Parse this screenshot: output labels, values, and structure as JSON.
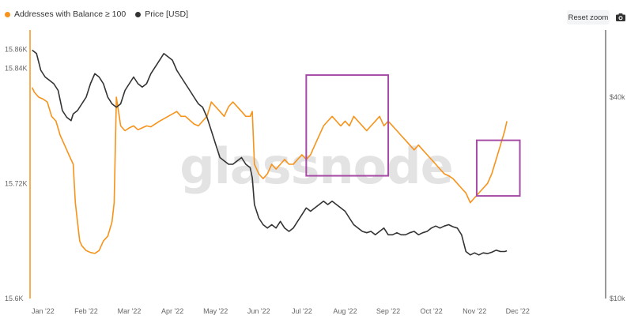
{
  "legend": {
    "addresses_label": "Addresses with Balance ≥ 100",
    "price_label": "Price [USD]"
  },
  "toolbar": {
    "reset_zoom_label": "Reset zoom",
    "camera_icon": "camera-icon"
  },
  "watermark": "glassnode",
  "colors": {
    "addresses": "#f7931a",
    "price": "#333333",
    "highlight": "#a64ca6",
    "axis_line": "#f7931a"
  },
  "chart_data": {
    "type": "line",
    "x_ticks": [
      "Jan '22",
      "Feb '22",
      "Mar '22",
      "Apr '22",
      "May '22",
      "Jun '22",
      "Jul '22",
      "Aug '22",
      "Sep '22",
      "Oct '22",
      "Nov '22",
      "Dec '22"
    ],
    "y_left_ticks": [
      "15.6K",
      "15.72K",
      "15.84K",
      "15.86K"
    ],
    "y_right_ticks": [
      "$10k",
      "$40k"
    ],
    "ylim_left": [
      15.6,
      15.88
    ],
    "ylim_right": [
      10000,
      50000
    ],
    "grid": false,
    "legend_position": "top-left",
    "x_range": [
      0,
      12
    ],
    "series": [
      {
        "name": "Addresses with Balance ≥ 100",
        "axis": "left",
        "color": "#f7931a",
        "points": [
          [
            0.05,
            15.82
          ],
          [
            0.1,
            15.815
          ],
          [
            0.2,
            15.81
          ],
          [
            0.3,
            15.808
          ],
          [
            0.4,
            15.805
          ],
          [
            0.5,
            15.79
          ],
          [
            0.6,
            15.785
          ],
          [
            0.7,
            15.77
          ],
          [
            0.8,
            15.76
          ],
          [
            0.9,
            15.75
          ],
          [
            1.0,
            15.74
          ],
          [
            1.05,
            15.7
          ],
          [
            1.1,
            15.68
          ],
          [
            1.15,
            15.66
          ],
          [
            1.2,
            15.655
          ],
          [
            1.3,
            15.65
          ],
          [
            1.4,
            15.648
          ],
          [
            1.5,
            15.647
          ],
          [
            1.6,
            15.65
          ],
          [
            1.7,
            15.66
          ],
          [
            1.8,
            15.665
          ],
          [
            1.9,
            15.68
          ],
          [
            1.95,
            15.7
          ],
          [
            2.0,
            15.81
          ],
          [
            2.1,
            15.78
          ],
          [
            2.2,
            15.775
          ],
          [
            2.3,
            15.778
          ],
          [
            2.4,
            15.78
          ],
          [
            2.5,
            15.776
          ],
          [
            2.6,
            15.778
          ],
          [
            2.7,
            15.78
          ],
          [
            2.8,
            15.779
          ],
          [
            3.0,
            15.785
          ],
          [
            3.2,
            15.79
          ],
          [
            3.4,
            15.795
          ],
          [
            3.5,
            15.79
          ],
          [
            3.6,
            15.79
          ],
          [
            3.8,
            15.782
          ],
          [
            3.9,
            15.78
          ],
          [
            4.0,
            15.785
          ],
          [
            4.1,
            15.79
          ],
          [
            4.2,
            15.805
          ],
          [
            4.3,
            15.8
          ],
          [
            4.4,
            15.795
          ],
          [
            4.5,
            15.79
          ],
          [
            4.6,
            15.8
          ],
          [
            4.7,
            15.805
          ],
          [
            4.8,
            15.8
          ],
          [
            4.9,
            15.795
          ],
          [
            5.0,
            15.79
          ],
          [
            5.1,
            15.79
          ],
          [
            5.15,
            15.795
          ],
          [
            5.2,
            15.74
          ],
          [
            5.3,
            15.73
          ],
          [
            5.4,
            15.725
          ],
          [
            5.5,
            15.73
          ],
          [
            5.6,
            15.74
          ],
          [
            5.7,
            15.735
          ],
          [
            5.8,
            15.74
          ],
          [
            5.9,
            15.745
          ],
          [
            6.0,
            15.74
          ],
          [
            6.1,
            15.74
          ],
          [
            6.2,
            15.745
          ],
          [
            6.3,
            15.75
          ],
          [
            6.4,
            15.745
          ],
          [
            6.5,
            15.75
          ],
          [
            6.6,
            15.76
          ],
          [
            6.7,
            15.77
          ],
          [
            6.8,
            15.78
          ],
          [
            6.9,
            15.785
          ],
          [
            7.0,
            15.79
          ],
          [
            7.1,
            15.785
          ],
          [
            7.2,
            15.78
          ],
          [
            7.3,
            15.785
          ],
          [
            7.4,
            15.78
          ],
          [
            7.5,
            15.79
          ],
          [
            7.6,
            15.785
          ],
          [
            7.7,
            15.78
          ],
          [
            7.8,
            15.775
          ],
          [
            7.9,
            15.78
          ],
          [
            8.0,
            15.785
          ],
          [
            8.1,
            15.79
          ],
          [
            8.2,
            15.78
          ],
          [
            8.3,
            15.785
          ],
          [
            8.4,
            15.78
          ],
          [
            8.5,
            15.775
          ],
          [
            8.6,
            15.77
          ],
          [
            8.7,
            15.765
          ],
          [
            8.8,
            15.76
          ],
          [
            8.9,
            15.755
          ],
          [
            9.0,
            15.76
          ],
          [
            9.1,
            15.755
          ],
          [
            9.2,
            15.75
          ],
          [
            9.3,
            15.745
          ],
          [
            9.4,
            15.74
          ],
          [
            9.5,
            15.735
          ],
          [
            9.6,
            15.73
          ],
          [
            9.7,
            15.728
          ],
          [
            9.8,
            15.725
          ],
          [
            9.9,
            15.72
          ],
          [
            10.0,
            15.715
          ],
          [
            10.1,
            15.71
          ],
          [
            10.2,
            15.7
          ],
          [
            10.3,
            15.705
          ],
          [
            10.4,
            15.71
          ],
          [
            10.5,
            15.715
          ],
          [
            10.6,
            15.72
          ],
          [
            10.7,
            15.73
          ],
          [
            10.8,
            15.745
          ],
          [
            10.9,
            15.76
          ],
          [
            11.0,
            15.775
          ],
          [
            11.05,
            15.785
          ]
        ]
      },
      {
        "name": "Price [USD]",
        "axis": "right",
        "color": "#333333",
        "points": [
          [
            0.05,
            47000
          ],
          [
            0.15,
            46500
          ],
          [
            0.25,
            44000
          ],
          [
            0.35,
            43000
          ],
          [
            0.45,
            42500
          ],
          [
            0.55,
            42000
          ],
          [
            0.65,
            41000
          ],
          [
            0.75,
            38000
          ],
          [
            0.85,
            37000
          ],
          [
            0.95,
            36500
          ],
          [
            1.0,
            37500
          ],
          [
            1.1,
            38000
          ],
          [
            1.2,
            39000
          ],
          [
            1.3,
            40000
          ],
          [
            1.4,
            42000
          ],
          [
            1.5,
            43500
          ],
          [
            1.6,
            43000
          ],
          [
            1.7,
            42000
          ],
          [
            1.8,
            40000
          ],
          [
            1.9,
            39000
          ],
          [
            2.0,
            38500
          ],
          [
            2.1,
            39000
          ],
          [
            2.2,
            41000
          ],
          [
            2.3,
            42000
          ],
          [
            2.4,
            43000
          ],
          [
            2.5,
            42000
          ],
          [
            2.6,
            41500
          ],
          [
            2.7,
            42000
          ],
          [
            2.8,
            43500
          ],
          [
            2.9,
            44500
          ],
          [
            3.0,
            45500
          ],
          [
            3.1,
            46500
          ],
          [
            3.2,
            46000
          ],
          [
            3.3,
            45500
          ],
          [
            3.4,
            44000
          ],
          [
            3.5,
            43000
          ],
          [
            3.6,
            42000
          ],
          [
            3.7,
            41000
          ],
          [
            3.8,
            40000
          ],
          [
            3.9,
            39000
          ],
          [
            4.0,
            38500
          ],
          [
            4.1,
            37000
          ],
          [
            4.2,
            35000
          ],
          [
            4.3,
            33000
          ],
          [
            4.4,
            31000
          ],
          [
            4.5,
            30500
          ],
          [
            4.6,
            30000
          ],
          [
            4.7,
            30000
          ],
          [
            4.8,
            30500
          ],
          [
            4.9,
            31000
          ],
          [
            5.0,
            30000
          ],
          [
            5.1,
            29500
          ],
          [
            5.15,
            28000
          ],
          [
            5.2,
            24000
          ],
          [
            5.3,
            22000
          ],
          [
            5.4,
            21000
          ],
          [
            5.5,
            20500
          ],
          [
            5.6,
            21000
          ],
          [
            5.7,
            20500
          ],
          [
            5.8,
            21500
          ],
          [
            5.9,
            20500
          ],
          [
            6.0,
            20000
          ],
          [
            6.1,
            20500
          ],
          [
            6.2,
            21500
          ],
          [
            6.3,
            22500
          ],
          [
            6.4,
            23500
          ],
          [
            6.5,
            23000
          ],
          [
            6.6,
            23500
          ],
          [
            6.7,
            24000
          ],
          [
            6.8,
            24500
          ],
          [
            6.9,
            24000
          ],
          [
            7.0,
            24500
          ],
          [
            7.1,
            24000
          ],
          [
            7.2,
            23500
          ],
          [
            7.3,
            23000
          ],
          [
            7.4,
            22000
          ],
          [
            7.5,
            21000
          ],
          [
            7.6,
            20500
          ],
          [
            7.7,
            20000
          ],
          [
            7.8,
            19800
          ],
          [
            7.9,
            20000
          ],
          [
            8.0,
            19500
          ],
          [
            8.1,
            20000
          ],
          [
            8.2,
            20500
          ],
          [
            8.3,
            19500
          ],
          [
            8.4,
            19500
          ],
          [
            8.5,
            19800
          ],
          [
            8.6,
            19500
          ],
          [
            8.7,
            19500
          ],
          [
            8.8,
            19800
          ],
          [
            8.9,
            20000
          ],
          [
            9.0,
            19500
          ],
          [
            9.1,
            19800
          ],
          [
            9.2,
            20000
          ],
          [
            9.3,
            20500
          ],
          [
            9.4,
            20800
          ],
          [
            9.5,
            20500
          ],
          [
            9.6,
            20800
          ],
          [
            9.7,
            21000
          ],
          [
            9.8,
            20700
          ],
          [
            9.9,
            20500
          ],
          [
            10.0,
            19500
          ],
          [
            10.1,
            17000
          ],
          [
            10.2,
            16500
          ],
          [
            10.3,
            16800
          ],
          [
            10.4,
            16500
          ],
          [
            10.5,
            16800
          ],
          [
            10.6,
            16700
          ],
          [
            10.7,
            16900
          ],
          [
            10.8,
            17200
          ],
          [
            10.9,
            17000
          ],
          [
            11.0,
            17000
          ],
          [
            11.05,
            17100
          ]
        ]
      }
    ],
    "annotations": [
      {
        "type": "rect",
        "x0": 6.4,
        "x1": 8.3,
        "y0_left": 15.728,
        "y1_left": 15.833,
        "color": "#a64ca6"
      },
      {
        "type": "rect",
        "x0": 10.35,
        "x1": 11.35,
        "y0_left": 15.707,
        "y1_left": 15.765,
        "color": "#a64ca6"
      }
    ]
  }
}
